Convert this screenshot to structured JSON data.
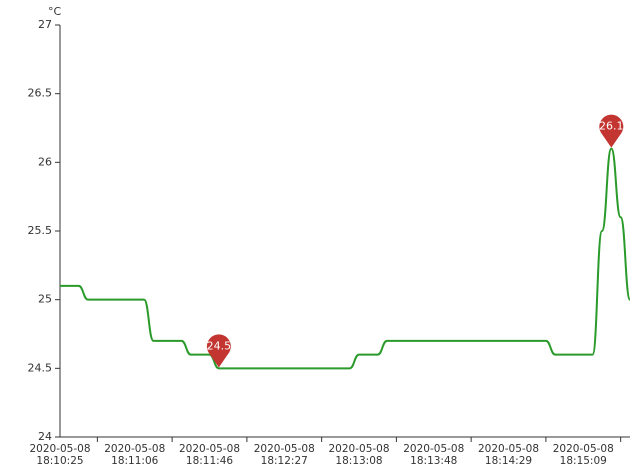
{
  "chart_data": {
    "type": "line",
    "y_axis_label": "°C",
    "ylim": [
      24,
      27
    ],
    "yticks": [
      24,
      24.5,
      25,
      25.5,
      26,
      26.5,
      27
    ],
    "smooth": true,
    "mark_points": [
      "max",
      "min"
    ],
    "mark_point_color": "#c23531",
    "categories": [
      "2020-05-08\n18:10:25",
      null,
      null,
      null,
      null,
      null,
      null,
      null,
      "2020-05-08\n18:11:06",
      null,
      null,
      null,
      null,
      null,
      null,
      null,
      "2020-05-08\n18:11:46",
      null,
      null,
      null,
      null,
      null,
      null,
      null,
      "2020-05-08\n18:12:27",
      null,
      null,
      null,
      null,
      null,
      null,
      null,
      "2020-05-08\n18:13:08",
      null,
      null,
      null,
      null,
      null,
      null,
      null,
      "2020-05-08\n18:13:48",
      null,
      null,
      null,
      null,
      null,
      null,
      null,
      "2020-05-08\n18:14:29",
      null,
      null,
      null,
      null,
      null,
      null,
      null,
      "2020-05-08\n18:15:09",
      null,
      null,
      null,
      null,
      null
    ],
    "series": [
      {
        "color": "#2a9a2a",
        "values": [
          25.1,
          25.1,
          25.1,
          25.0,
          25.0,
          25.0,
          25.0,
          25.0,
          25.0,
          25.0,
          24.7,
          24.7,
          24.7,
          24.7,
          24.6,
          24.6,
          24.6,
          24.5,
          24.5,
          24.5,
          24.5,
          24.5,
          24.5,
          24.5,
          24.5,
          24.5,
          24.5,
          24.5,
          24.5,
          24.5,
          24.5,
          24.5,
          24.6,
          24.6,
          24.6,
          24.7,
          24.7,
          24.7,
          24.7,
          24.7,
          24.7,
          24.7,
          24.7,
          24.7,
          24.7,
          24.7,
          24.7,
          24.7,
          24.7,
          24.7,
          24.7,
          24.7,
          24.7,
          24.6,
          24.6,
          24.6,
          24.6,
          24.6,
          25.5,
          26.1,
          25.6,
          25.0
        ]
      }
    ]
  }
}
